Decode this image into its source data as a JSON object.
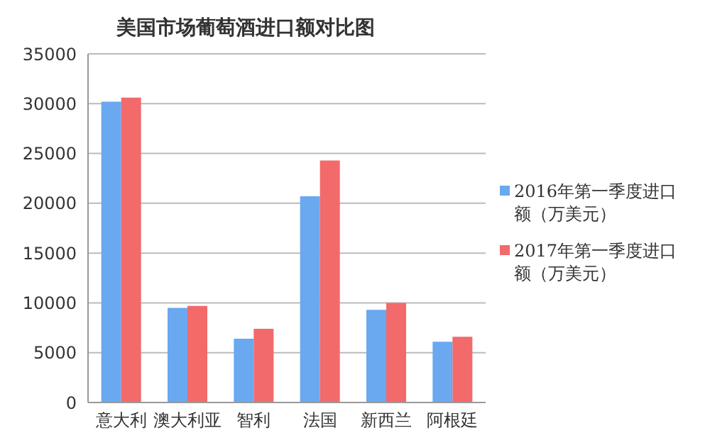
{
  "chart_data": {
    "type": "bar",
    "title": "美国市场葡萄酒进口额对比图",
    "categories": [
      "意大利",
      "澳大利亚",
      "智利",
      "法国",
      "新西兰",
      "阿根廷"
    ],
    "series": [
      {
        "name": "2016年第一季度进口额（万美元）",
        "color": "#6aa8f0",
        "values": [
          30200,
          9500,
          6400,
          20700,
          9300,
          6100
        ]
      },
      {
        "name": "2017年第一季度进口额（万美元）",
        "color": "#f26a6a",
        "values": [
          30600,
          9700,
          7400,
          24300,
          10000,
          6600
        ]
      }
    ],
    "ylim": [
      0,
      35000
    ],
    "yticks": [
      0,
      5000,
      10000,
      15000,
      20000,
      25000,
      30000,
      35000
    ],
    "grid": "y",
    "legend": "right"
  }
}
